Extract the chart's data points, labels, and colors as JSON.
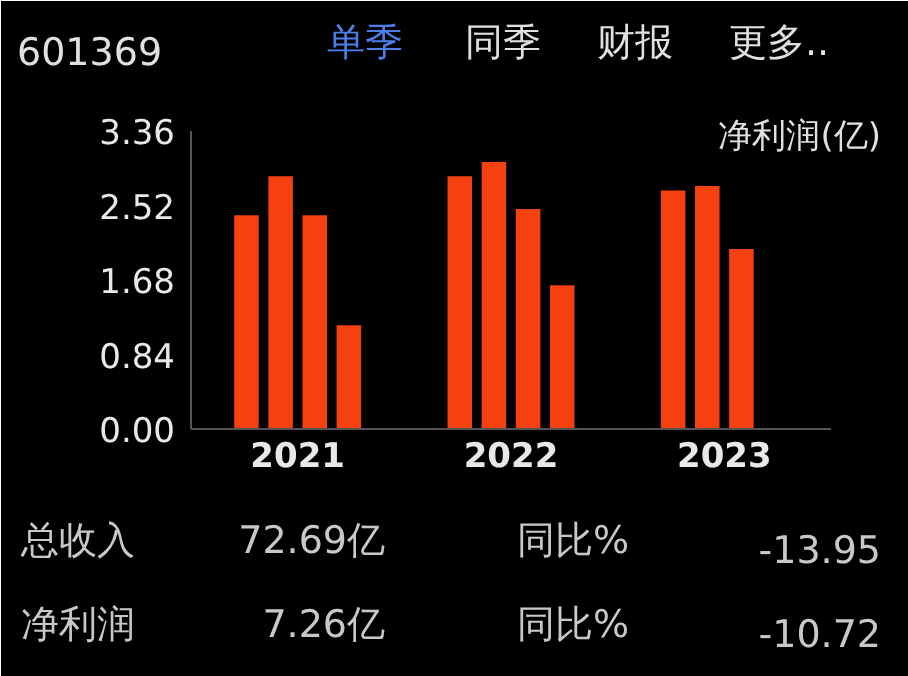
{
  "chart_data": {
    "type": "bar",
    "title": "601369",
    "ylabel": "净利润(亿)",
    "categories": [
      "2021",
      "2022",
      "2023"
    ],
    "series": [
      {
        "color": "#f5400f",
        "values": [
          2.41,
          2.85,
          2.69
        ]
      },
      {
        "color": "#f5400f",
        "values": [
          2.85,
          3.01,
          2.74
        ]
      },
      {
        "color": "#f5400f",
        "values": [
          2.41,
          2.48,
          2.03
        ]
      },
      {
        "color": "#f5400f",
        "values": [
          1.17,
          1.62,
          null
        ]
      }
    ],
    "ylim": [
      0,
      3.36
    ],
    "yticks": [
      {
        "value": 0,
        "label": "0.00"
      },
      0.84,
      1.68,
      2.52,
      3.36
    ],
    "grid": false,
    "annotations": [
      "单季",
      "同季",
      "财报",
      "更多..",
      "总收入",
      "72.69亿",
      "同比%",
      "-13.95",
      "净利润",
      "7.26亿",
      "同比%",
      "-10.72"
    ]
  }
}
